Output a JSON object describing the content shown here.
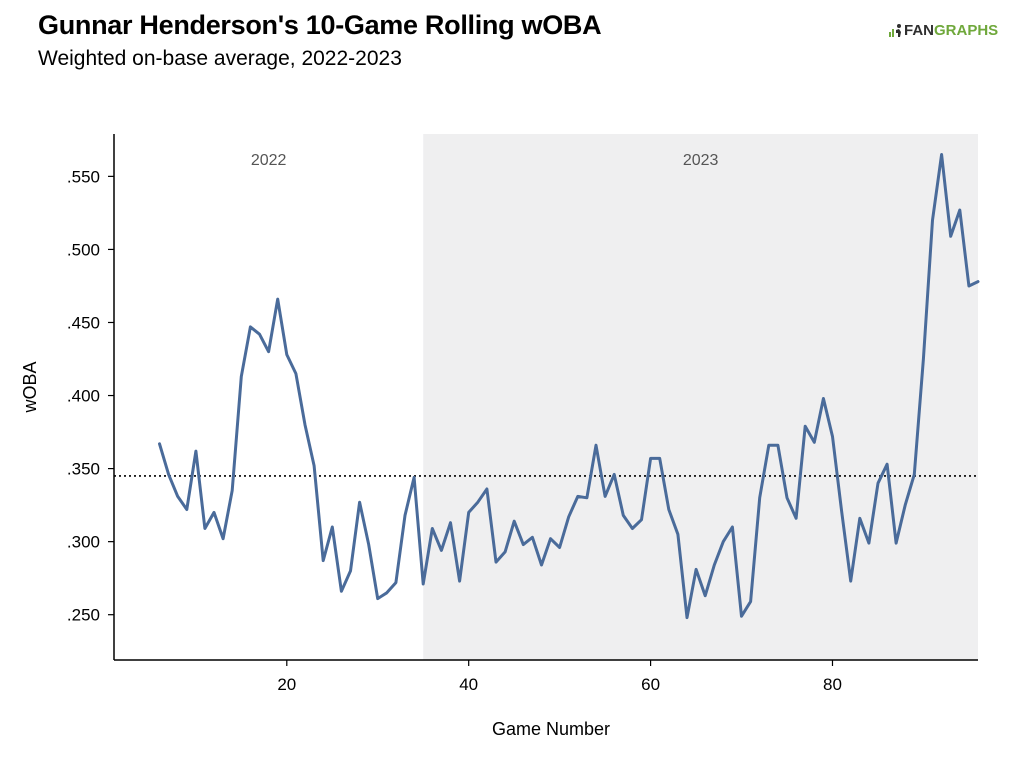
{
  "header": {
    "title": "Gunnar Henderson's 10-Game Rolling wOBA",
    "subtitle": "Weighted on-base average, 2022-2023",
    "logo_left": "FAN",
    "logo_right": "GRAPHS"
  },
  "colors": {
    "line": "#4a6b9a",
    "shade": "#efeff0",
    "logo_green": "#6fa83b",
    "reference_line": "#000000"
  },
  "chart_data": {
    "type": "line",
    "xlabel": "Game Number",
    "ylabel": "wOBA",
    "xlim": [
      1,
      96
    ],
    "ylim": [
      0.219,
      0.579
    ],
    "xticks": [
      20,
      40,
      60,
      80
    ],
    "xtick_labels": [
      "20",
      "40",
      "60",
      "80"
    ],
    "yticks": [
      0.25,
      0.3,
      0.35,
      0.4,
      0.45,
      0.5,
      0.55
    ],
    "ytick_labels": [
      ".250",
      ".300",
      ".350",
      ".400",
      ".450",
      ".500",
      ".550"
    ],
    "reference_line": {
      "y": 0.345,
      "style": "dotted"
    },
    "regions": [
      {
        "label": "2022",
        "x_start": 1,
        "x_end": 35,
        "shaded": false
      },
      {
        "label": "2023",
        "x_start": 35,
        "x_end": 96,
        "shaded": true
      }
    ],
    "series": [
      {
        "x": [
          6,
          7,
          8,
          9,
          10,
          11,
          12,
          13,
          14,
          15,
          16,
          17,
          18,
          19,
          20,
          21,
          22,
          23,
          24,
          25,
          26,
          27,
          28,
          29,
          30,
          31,
          32,
          33,
          34,
          35,
          36,
          37,
          38,
          39,
          40,
          41,
          42,
          43,
          44,
          45,
          46,
          47,
          48,
          49,
          50,
          51,
          52,
          53,
          54,
          55,
          56,
          57,
          58,
          59,
          60,
          61,
          62,
          63,
          64,
          65,
          66,
          67,
          68,
          69,
          70,
          71,
          72,
          73,
          74,
          75,
          76,
          77,
          78,
          79,
          80,
          81,
          82,
          83,
          84,
          85,
          86,
          87,
          88,
          89,
          90,
          91,
          92,
          93,
          94,
          95,
          96
        ],
        "values": [
          0.367,
          0.346,
          0.331,
          0.322,
          0.362,
          0.309,
          0.32,
          0.302,
          0.335,
          0.413,
          0.447,
          0.442,
          0.43,
          0.466,
          0.428,
          0.415,
          0.38,
          0.352,
          0.287,
          0.31,
          0.266,
          0.28,
          0.327,
          0.298,
          0.261,
          0.265,
          0.272,
          0.318,
          0.344,
          0.271,
          0.309,
          0.294,
          0.313,
          0.273,
          0.32,
          0.327,
          0.336,
          0.286,
          0.293,
          0.314,
          0.298,
          0.303,
          0.284,
          0.302,
          0.296,
          0.317,
          0.331,
          0.33,
          0.366,
          0.331,
          0.346,
          0.318,
          0.309,
          0.315,
          0.357,
          0.357,
          0.322,
          0.305,
          0.248,
          0.281,
          0.263,
          0.284,
          0.3,
          0.31,
          0.249,
          0.259,
          0.33,
          0.366,
          0.366,
          0.33,
          0.316,
          0.379,
          0.368,
          0.398,
          0.372,
          0.321,
          0.273,
          0.316,
          0.299,
          0.34,
          0.353,
          0.299,
          0.325,
          0.346,
          0.425,
          0.52,
          0.565,
          0.509,
          0.527,
          0.475,
          0.478
        ]
      }
    ]
  }
}
